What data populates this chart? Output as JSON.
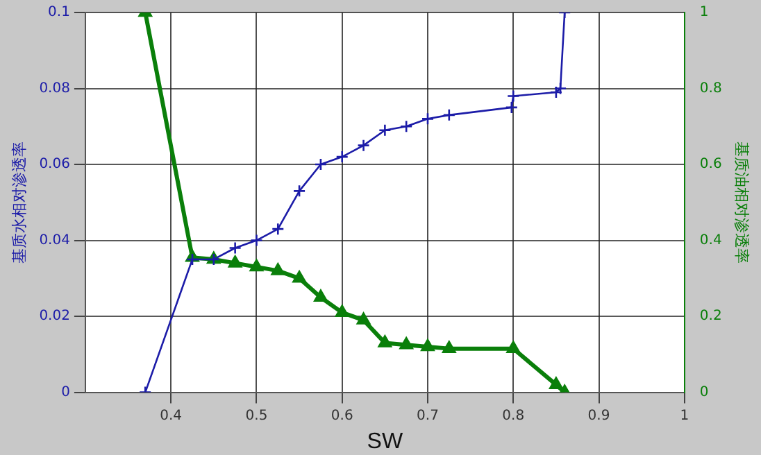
{
  "chart_data": {
    "type": "line",
    "xlabel": "SW",
    "ylabel": "基质水相对渗透率",
    "y2label": "基质油相对渗透率",
    "xlim": [
      0.3,
      1
    ],
    "xticks": [
      0.4,
      0.5,
      0.6,
      0.7,
      0.8,
      0.9,
      1
    ],
    "ylim": [
      0,
      0.1
    ],
    "yticks": [
      0,
      0.02,
      0.04,
      0.06,
      0.08,
      0.1
    ],
    "y2lim": [
      0,
      1
    ],
    "y2ticks": [
      0,
      0.2,
      0.4,
      0.6,
      0.8,
      1
    ],
    "grid": true,
    "line_style": "solid",
    "series": [
      {
        "color": "#1c1ca8",
        "marker": "cross",
        "x": [
          0.37,
          0.425,
          0.45,
          0.475,
          0.5,
          0.525,
          0.55,
          0.575,
          0.6,
          0.625,
          0.65,
          0.675,
          0.7,
          0.725,
          0.798,
          0.8,
          0.85,
          0.855,
          0.86
        ],
        "values": [
          0,
          0.035,
          0.035,
          0.038,
          0.04,
          0.043,
          0.053,
          0.06,
          0.062,
          0.065,
          0.069,
          0.07,
          0.072,
          0.073,
          0.075,
          0.078,
          0.079,
          0.08,
          0.1
        ]
      },
      {
        "color": "#0a7f0a",
        "marker": "triangle",
        "axis": "y2",
        "x": [
          0.37,
          0.425,
          0.45,
          0.475,
          0.5,
          0.525,
          0.55,
          0.575,
          0.6,
          0.625,
          0.65,
          0.675,
          0.7,
          0.725,
          0.8,
          0.85,
          0.86
        ],
        "values": [
          1,
          0.355,
          0.35,
          0.34,
          0.33,
          0.32,
          0.3,
          0.25,
          0.21,
          0.19,
          0.13,
          0.125,
          0.12,
          0.115,
          0.115,
          0.02,
          0
        ]
      }
    ]
  }
}
